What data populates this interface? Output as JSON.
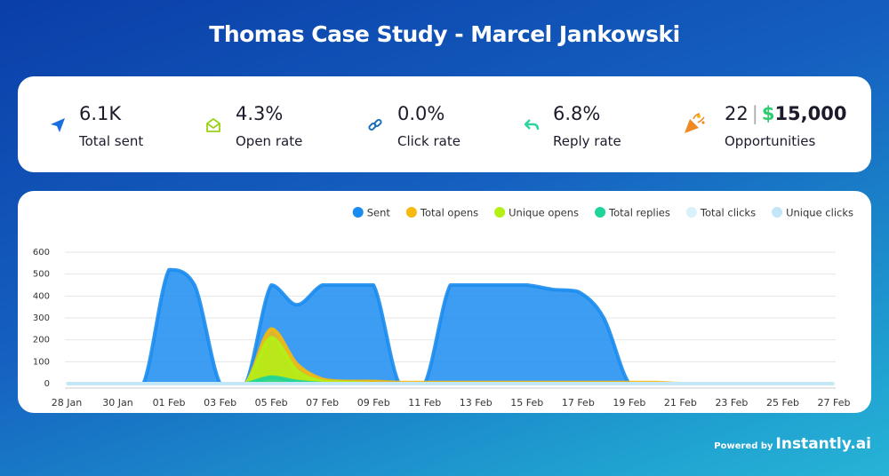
{
  "header": {
    "title": "Thomas Case Study - Marcel Jankowski"
  },
  "stats": [
    {
      "value": "6.1K",
      "label": "Total sent"
    },
    {
      "value": "4.3%",
      "label": "Open rate"
    },
    {
      "value": "0.0%",
      "label": "Click rate"
    },
    {
      "value": "6.8%",
      "label": "Reply rate"
    },
    {
      "value": "22",
      "currency": "$",
      "amount": "15,000",
      "label": "Opportunities"
    }
  ],
  "chart_data": {
    "type": "area",
    "categories": [
      "28 Jan",
      null,
      "30 Jan",
      null,
      "01 Feb",
      null,
      "03 Feb",
      null,
      "05 Feb",
      null,
      "07 Feb",
      null,
      "09 Feb",
      null,
      "11 Feb",
      null,
      "13 Feb",
      null,
      "15 Feb",
      null,
      "17 Feb",
      null,
      "19 Feb",
      null,
      "21 Feb",
      null,
      "23 Feb",
      null,
      "25 Feb",
      null,
      "27 Feb"
    ],
    "series": [
      {
        "name": "Sent",
        "color": "#1a8cf0",
        "values": [
          0,
          0,
          0,
          0,
          520,
          450,
          0,
          0,
          450,
          360,
          450,
          450,
          450,
          0,
          0,
          450,
          450,
          450,
          450,
          430,
          420,
          300,
          0,
          0,
          0,
          0,
          0,
          0,
          0,
          0,
          0
        ]
      },
      {
        "name": "Total opens",
        "color": "#f5b90f",
        "values": [
          0,
          0,
          0,
          0,
          0,
          0,
          0,
          0,
          250,
          90,
          20,
          10,
          10,
          5,
          5,
          5,
          5,
          5,
          5,
          5,
          5,
          5,
          5,
          5,
          0,
          0,
          0,
          0,
          0,
          0,
          0
        ]
      },
      {
        "name": "Unique opens",
        "color": "#b4f016",
        "values": [
          0,
          0,
          0,
          0,
          0,
          0,
          0,
          0,
          210,
          60,
          10,
          5,
          0,
          0,
          0,
          0,
          0,
          0,
          0,
          0,
          0,
          0,
          0,
          0,
          0,
          0,
          0,
          0,
          0,
          0,
          0
        ]
      },
      {
        "name": "Total replies",
        "color": "#1ed49a",
        "values": [
          0,
          0,
          0,
          0,
          0,
          0,
          0,
          0,
          30,
          10,
          0,
          0,
          0,
          0,
          0,
          0,
          0,
          0,
          0,
          0,
          0,
          0,
          0,
          0,
          0,
          0,
          0,
          0,
          0,
          0,
          0
        ]
      },
      {
        "name": "Total clicks",
        "color": "#d9f1fb",
        "values": [
          0,
          0,
          0,
          0,
          0,
          0,
          0,
          0,
          0,
          0,
          0,
          0,
          0,
          0,
          0,
          0,
          0,
          0,
          0,
          0,
          0,
          0,
          0,
          0,
          0,
          0,
          0,
          0,
          0,
          0,
          0
        ]
      },
      {
        "name": "Unique clicks",
        "color": "#c2e6f7",
        "values": [
          0,
          0,
          0,
          0,
          0,
          0,
          0,
          0,
          0,
          0,
          0,
          0,
          0,
          0,
          0,
          0,
          0,
          0,
          0,
          0,
          0,
          0,
          0,
          0,
          0,
          0,
          0,
          0,
          0,
          0,
          0
        ]
      }
    ],
    "ylim": [
      0,
      600
    ],
    "yticks": [
      0,
      100,
      200,
      300,
      400,
      500,
      600
    ],
    "grid": true,
    "legend": "top-right"
  },
  "footer": {
    "prefix": "Powered by",
    "brand": "Instantly.ai"
  }
}
